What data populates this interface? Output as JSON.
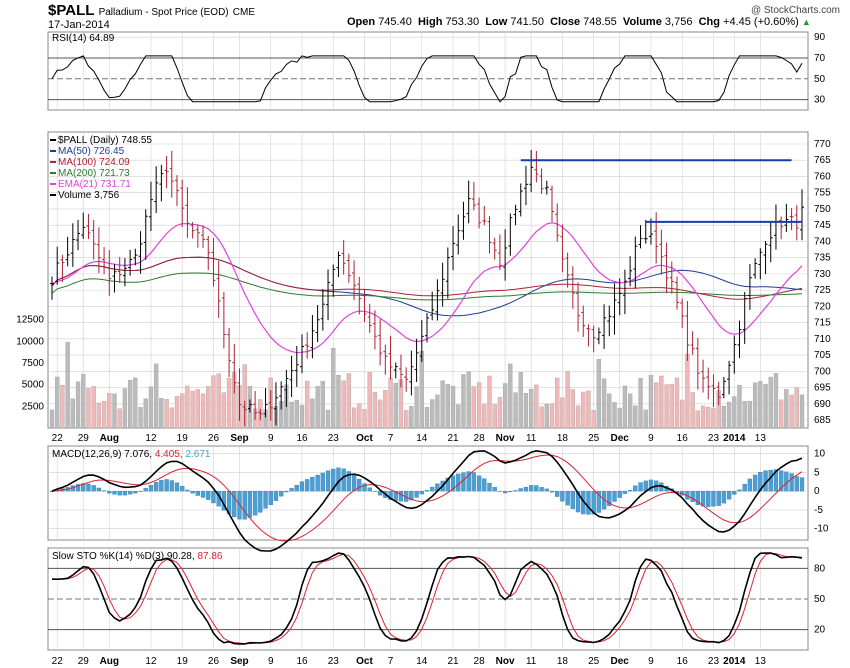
{
  "header": {
    "ticker": "$PALL",
    "name": "Palladium - Spot Price (EOD)",
    "exchange": "CME",
    "date": "17-Jan-2014",
    "watermark": "@ StockCharts.com",
    "open_label": "Open",
    "open": "745.40",
    "high_label": "High",
    "high": "753.30",
    "low_label": "Low",
    "low": "741.50",
    "close_label": "Close",
    "close": "748.55",
    "volume_label": "Volume",
    "volume": "3,756",
    "chg_label": "Chg",
    "chg": "+4.45 (+0.60%)",
    "chg_arrow": "▲"
  },
  "legends": {
    "rsi": "RSI(14) 64.89",
    "price": "$PALL (Daily) 748.55",
    "ma50": "MA(50) 726.45",
    "ma100": "MA(100) 724.09",
    "ma200": "MA(200) 721.73",
    "ema21": "EMA(21) 731.71",
    "volume": "Volume 3,756",
    "macd_name": "MACD(12,26,9)",
    "macd_v1": "7.076",
    "macd_v2": "4.405",
    "macd_v3": "2.671",
    "sto_name": "Slow STO %K(14) %D(3)",
    "sto_k": "90.28",
    "sto_d": "87.86"
  },
  "colors": {
    "ma50": "#1e3c96",
    "ma100": "#aa2233",
    "ma200": "#2e7a32",
    "ema21": "#dd44dd",
    "up_bar": "#000000",
    "down_bar": "#aa2233",
    "vol_up": "#bbbbbb",
    "vol_down": "#f0b8b8",
    "hist": "#4a9fd4",
    "hline": "#1a3aa8",
    "grid": "#d0d0d0"
  },
  "chart_data": {
    "type": "ohlc",
    "x_tick_labels": [
      "22",
      "29",
      "Aug",
      "12",
      "19",
      "26",
      "Sep",
      "9",
      "16",
      "23",
      "Oct",
      "7",
      "14",
      "21",
      "28",
      "Nov",
      "11",
      "18",
      "25",
      "Dec",
      "9",
      "16",
      "23",
      "2014",
      "13"
    ],
    "x_tick_index": [
      1,
      6,
      11,
      19,
      25,
      31,
      36,
      42,
      48,
      54,
      60,
      65,
      71,
      77,
      82,
      87,
      92,
      98,
      104,
      109,
      115,
      121,
      127,
      131,
      136
    ],
    "num_days": 145,
    "price_axis": {
      "min": 685,
      "max": 770,
      "step": 5
    },
    "price_levels_sample": [
      [
        0,
        729
      ],
      [
        6,
        745
      ],
      [
        11,
        728
      ],
      [
        16,
        735
      ],
      [
        19,
        753
      ],
      [
        22,
        763
      ],
      [
        26,
        745
      ],
      [
        30,
        737
      ],
      [
        33,
        712
      ],
      [
        36,
        690
      ],
      [
        40,
        686
      ],
      [
        44,
        695
      ],
      [
        48,
        706
      ],
      [
        52,
        720
      ],
      [
        55,
        737
      ],
      [
        58,
        727
      ],
      [
        61,
        714
      ],
      [
        64,
        703
      ],
      [
        68,
        697
      ],
      [
        71,
        710
      ],
      [
        74,
        724
      ],
      [
        77,
        740
      ],
      [
        80,
        752
      ],
      [
        83,
        745
      ],
      [
        86,
        734
      ],
      [
        89,
        751
      ],
      [
        92,
        763
      ],
      [
        95,
        755
      ],
      [
        98,
        733
      ],
      [
        101,
        718
      ],
      [
        104,
        712
      ],
      [
        107,
        718
      ],
      [
        110,
        727
      ],
      [
        113,
        742
      ],
      [
        116,
        740
      ],
      [
        119,
        726
      ],
      [
        122,
        710
      ],
      [
        125,
        696
      ],
      [
        128,
        693
      ],
      [
        131,
        708
      ],
      [
        134,
        728
      ],
      [
        137,
        741
      ],
      [
        140,
        746
      ],
      [
        143,
        746
      ],
      [
        144,
        749
      ]
    ],
    "horizontal_lines": [
      {
        "from": 90,
        "to": 142,
        "value": 765
      },
      {
        "from": 114,
        "to": 144,
        "value": 746
      }
    ],
    "volume_axis": {
      "min": 0,
      "max": 15000,
      "ticks": [
        2500,
        5000,
        7500,
        10000,
        12500
      ]
    },
    "rsi_axis": {
      "min": 20,
      "max": 95,
      "ticks": [
        30,
        50,
        70,
        90
      ],
      "last": 64.89
    },
    "macd_axis": {
      "min": -13,
      "max": 12,
      "ticks": [
        -10,
        -5,
        0,
        5,
        10
      ]
    },
    "sto_axis": {
      "min": 0,
      "max": 100,
      "ticks": [
        20,
        50,
        80
      ]
    }
  }
}
